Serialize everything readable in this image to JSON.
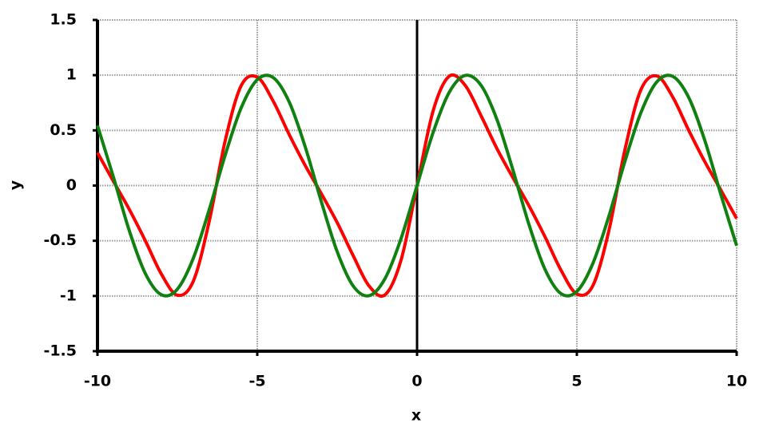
{
  "chart_data": {
    "type": "line",
    "x_label": "x",
    "y_label": "y",
    "x": [
      -10,
      -9.5,
      -9,
      -8.5,
      -8,
      -7.5,
      -7,
      -6.5,
      -6,
      -5.5,
      -5,
      -4.5,
      -4,
      -3.5,
      -3,
      -2.5,
      -2,
      -1.5,
      -1,
      -0.5,
      0,
      0.5,
      1,
      1.5,
      2,
      2.5,
      3,
      3.5,
      4,
      4.5,
      5,
      5.5,
      6,
      6.5,
      7,
      7.5,
      8,
      8.5,
      9,
      9.5,
      10
    ],
    "series": [
      {
        "color": "#ff0000",
        "values": [
          0.298,
          0.038,
          -0.218,
          -0.501,
          -0.802,
          -0.993,
          -0.865,
          -0.319,
          0.411,
          0.907,
          0.982,
          0.764,
          0.462,
          0.182,
          -0.071,
          -0.335,
          -0.634,
          -0.91,
          -0.989,
          -0.674,
          0,
          0.674,
          0.989,
          0.91,
          0.634,
          0.335,
          0.071,
          -0.182,
          -0.462,
          -0.764,
          -0.982,
          -0.907,
          -0.411,
          0.319,
          0.865,
          0.993,
          0.802,
          0.501,
          0.218,
          -0.038,
          -0.298
        ]
      },
      {
        "color": "#108010",
        "values": [
          0.544,
          0.075,
          -0.412,
          -0.798,
          -0.989,
          -0.938,
          -0.657,
          -0.215,
          0.279,
          0.706,
          0.959,
          0.978,
          0.757,
          0.351,
          -0.141,
          -0.598,
          -0.909,
          -0.997,
          -0.841,
          -0.479,
          0,
          0.479,
          0.841,
          0.997,
          0.909,
          0.598,
          0.141,
          -0.351,
          -0.757,
          -0.978,
          -0.959,
          -0.706,
          -0.279,
          0.215,
          0.657,
          0.938,
          0.989,
          0.798,
          0.412,
          -0.075,
          -0.544
        ]
      }
    ],
    "xlim": [
      -10,
      10
    ],
    "ylim": [
      -1.5,
      1.5
    ],
    "xticks": [
      -10,
      -5,
      0,
      5,
      10
    ],
    "yticks": [
      -1.5,
      -1,
      -0.5,
      0,
      0.5,
      1,
      1.5
    ],
    "grid": true
  }
}
